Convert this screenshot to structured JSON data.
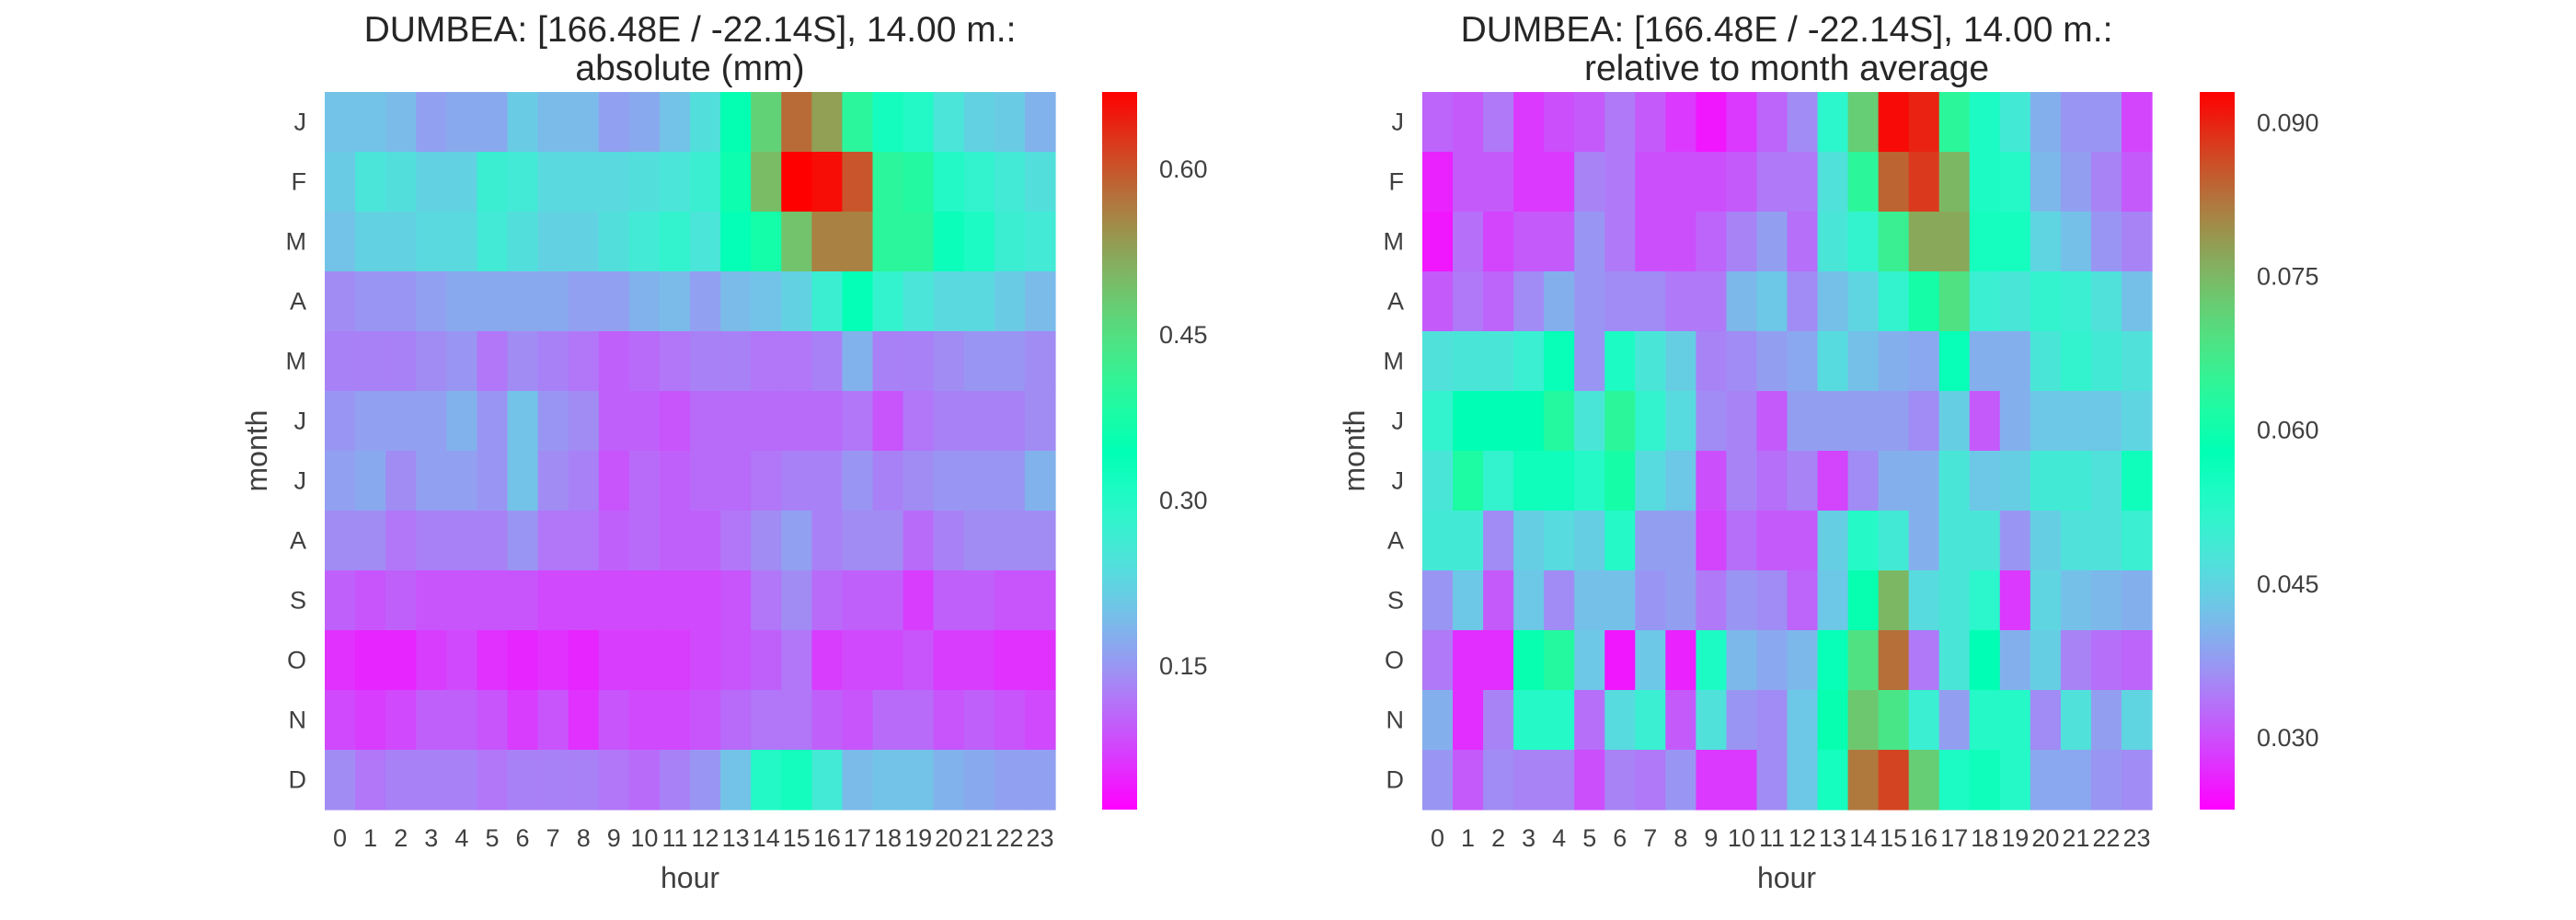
{
  "chart_data": [
    {
      "type": "heatmap",
      "title": "DUMBEA: [166.48E / -22.14S], 14.00 m.:",
      "subtitle": "absolute (mm)",
      "xlabel": "hour",
      "ylabel": "month",
      "x": [
        "0",
        "1",
        "2",
        "3",
        "4",
        "5",
        "6",
        "7",
        "8",
        "9",
        "10",
        "11",
        "12",
        "13",
        "14",
        "15",
        "16",
        "17",
        "18",
        "19",
        "20",
        "21",
        "22",
        "23"
      ],
      "y": [
        "J",
        "F",
        "M",
        "A",
        "M",
        "J",
        "J",
        "A",
        "S",
        "O",
        "N",
        "D"
      ],
      "colormap": "rainbow",
      "vmin": 0.02,
      "vmax": 0.67,
      "colorbar_ticks": [
        0.15,
        0.3,
        0.45,
        0.6
      ],
      "colorbar_tick_labels": [
        "0.15",
        "0.30",
        "0.45",
        "0.60"
      ],
      "values": [
        [
          0.2,
          0.2,
          0.19,
          0.16,
          0.17,
          0.17,
          0.21,
          0.19,
          0.19,
          0.16,
          0.17,
          0.2,
          0.24,
          0.35,
          0.47,
          0.58,
          0.53,
          0.4,
          0.32,
          0.3,
          0.25,
          0.22,
          0.21,
          0.18
        ],
        [
          0.21,
          0.25,
          0.24,
          0.22,
          0.22,
          0.27,
          0.26,
          0.23,
          0.23,
          0.23,
          0.24,
          0.25,
          0.27,
          0.36,
          0.5,
          0.67,
          0.66,
          0.6,
          0.4,
          0.39,
          0.3,
          0.28,
          0.26,
          0.24
        ],
        [
          0.2,
          0.22,
          0.22,
          0.23,
          0.23,
          0.26,
          0.24,
          0.22,
          0.22,
          0.24,
          0.26,
          0.28,
          0.25,
          0.34,
          0.37,
          0.49,
          0.56,
          0.56,
          0.4,
          0.4,
          0.33,
          0.31,
          0.27,
          0.26
        ],
        [
          0.14,
          0.15,
          0.15,
          0.16,
          0.17,
          0.17,
          0.17,
          0.17,
          0.16,
          0.16,
          0.18,
          0.19,
          0.16,
          0.19,
          0.2,
          0.22,
          0.27,
          0.34,
          0.28,
          0.25,
          0.23,
          0.23,
          0.21,
          0.19
        ],
        [
          0.13,
          0.13,
          0.13,
          0.14,
          0.15,
          0.12,
          0.14,
          0.13,
          0.12,
          0.1,
          0.11,
          0.12,
          0.13,
          0.13,
          0.12,
          0.12,
          0.13,
          0.18,
          0.13,
          0.13,
          0.14,
          0.15,
          0.15,
          0.14
        ],
        [
          0.15,
          0.16,
          0.16,
          0.16,
          0.18,
          0.15,
          0.2,
          0.15,
          0.14,
          0.1,
          0.1,
          0.09,
          0.11,
          0.11,
          0.11,
          0.11,
          0.11,
          0.12,
          0.09,
          0.12,
          0.13,
          0.13,
          0.13,
          0.14
        ],
        [
          0.16,
          0.17,
          0.14,
          0.16,
          0.16,
          0.15,
          0.2,
          0.14,
          0.13,
          0.09,
          0.11,
          0.1,
          0.11,
          0.11,
          0.12,
          0.13,
          0.13,
          0.15,
          0.13,
          0.14,
          0.15,
          0.15,
          0.15,
          0.18
        ],
        [
          0.14,
          0.14,
          0.12,
          0.13,
          0.13,
          0.13,
          0.15,
          0.12,
          0.12,
          0.1,
          0.11,
          0.1,
          0.1,
          0.12,
          0.14,
          0.16,
          0.13,
          0.14,
          0.14,
          0.11,
          0.13,
          0.14,
          0.14,
          0.14
        ],
        [
          0.1,
          0.09,
          0.1,
          0.09,
          0.09,
          0.09,
          0.09,
          0.08,
          0.08,
          0.08,
          0.08,
          0.08,
          0.08,
          0.09,
          0.12,
          0.14,
          0.11,
          0.1,
          0.1,
          0.07,
          0.1,
          0.1,
          0.09,
          0.09
        ],
        [
          0.06,
          0.05,
          0.05,
          0.07,
          0.08,
          0.06,
          0.05,
          0.06,
          0.05,
          0.07,
          0.07,
          0.07,
          0.08,
          0.09,
          0.1,
          0.12,
          0.07,
          0.08,
          0.08,
          0.09,
          0.07,
          0.07,
          0.06,
          0.06
        ],
        [
          0.08,
          0.07,
          0.08,
          0.1,
          0.1,
          0.09,
          0.07,
          0.09,
          0.06,
          0.09,
          0.08,
          0.08,
          0.09,
          0.11,
          0.12,
          0.12,
          0.1,
          0.09,
          0.11,
          0.11,
          0.09,
          0.1,
          0.09,
          0.08
        ],
        [
          0.14,
          0.12,
          0.13,
          0.13,
          0.13,
          0.12,
          0.13,
          0.13,
          0.13,
          0.12,
          0.11,
          0.13,
          0.15,
          0.2,
          0.3,
          0.32,
          0.26,
          0.19,
          0.2,
          0.2,
          0.18,
          0.17,
          0.16,
          0.16
        ]
      ]
    },
    {
      "type": "heatmap",
      "title": "DUMBEA: [166.48E / -22.14S], 14.00 m.:",
      "subtitle": "relative to month average",
      "xlabel": "hour",
      "ylabel": "month",
      "x": [
        "0",
        "1",
        "2",
        "3",
        "4",
        "5",
        "6",
        "7",
        "8",
        "9",
        "10",
        "11",
        "12",
        "13",
        "14",
        "15",
        "16",
        "17",
        "18",
        "19",
        "20",
        "21",
        "22",
        "23"
      ],
      "y": [
        "J",
        "F",
        "M",
        "A",
        "M",
        "J",
        "J",
        "A",
        "S",
        "O",
        "N",
        "D"
      ],
      "colormap": "rainbow",
      "vmin": 0.023,
      "vmax": 0.093,
      "colorbar_ticks": [
        0.03,
        0.045,
        0.06,
        0.075,
        0.09
      ],
      "colorbar_tick_labels": [
        "0.030",
        "0.045",
        "0.060",
        "0.075",
        "0.090"
      ],
      "values": [
        [
          0.032,
          0.031,
          0.034,
          0.028,
          0.03,
          0.031,
          0.034,
          0.031,
          0.028,
          0.025,
          0.028,
          0.032,
          0.036,
          0.052,
          0.072,
          0.092,
          0.09,
          0.064,
          0.054,
          0.049,
          0.04,
          0.037,
          0.037,
          0.029
        ],
        [
          0.026,
          0.031,
          0.031,
          0.028,
          0.028,
          0.035,
          0.034,
          0.03,
          0.03,
          0.03,
          0.031,
          0.034,
          0.034,
          0.047,
          0.064,
          0.084,
          0.088,
          0.075,
          0.054,
          0.053,
          0.041,
          0.038,
          0.035,
          0.031
        ],
        [
          0.025,
          0.033,
          0.029,
          0.031,
          0.031,
          0.037,
          0.034,
          0.03,
          0.03,
          0.032,
          0.035,
          0.038,
          0.033,
          0.048,
          0.051,
          0.066,
          0.077,
          0.077,
          0.055,
          0.055,
          0.045,
          0.042,
          0.037,
          0.035
        ],
        [
          0.031,
          0.034,
          0.032,
          0.036,
          0.04,
          0.037,
          0.036,
          0.036,
          0.034,
          0.034,
          0.041,
          0.043,
          0.036,
          0.042,
          0.045,
          0.051,
          0.061,
          0.069,
          0.05,
          0.048,
          0.051,
          0.05,
          0.047,
          0.042
        ],
        [
          0.047,
          0.048,
          0.048,
          0.05,
          0.057,
          0.037,
          0.054,
          0.048,
          0.044,
          0.035,
          0.036,
          0.038,
          0.039,
          0.046,
          0.042,
          0.04,
          0.039,
          0.057,
          0.04,
          0.04,
          0.048,
          0.051,
          0.049,
          0.047
        ],
        [
          0.051,
          0.058,
          0.058,
          0.058,
          0.063,
          0.048,
          0.064,
          0.051,
          0.046,
          0.036,
          0.035,
          0.031,
          0.038,
          0.038,
          0.038,
          0.038,
          0.036,
          0.044,
          0.031,
          0.04,
          0.043,
          0.043,
          0.043,
          0.045
        ],
        [
          0.048,
          0.062,
          0.051,
          0.056,
          0.056,
          0.053,
          0.061,
          0.046,
          0.043,
          0.03,
          0.035,
          0.033,
          0.035,
          0.029,
          0.036,
          0.04,
          0.04,
          0.048,
          0.043,
          0.044,
          0.049,
          0.049,
          0.047,
          0.056
        ],
        [
          0.049,
          0.049,
          0.036,
          0.044,
          0.046,
          0.044,
          0.053,
          0.038,
          0.038,
          0.029,
          0.033,
          0.031,
          0.031,
          0.044,
          0.053,
          0.049,
          0.04,
          0.048,
          0.048,
          0.037,
          0.044,
          0.047,
          0.047,
          0.05
        ],
        [
          0.037,
          0.043,
          0.031,
          0.043,
          0.036,
          0.042,
          0.042,
          0.037,
          0.038,
          0.034,
          0.037,
          0.036,
          0.032,
          0.043,
          0.059,
          0.075,
          0.046,
          0.048,
          0.052,
          0.028,
          0.045,
          0.042,
          0.041,
          0.04
        ],
        [
          0.034,
          0.027,
          0.027,
          0.059,
          0.063,
          0.043,
          0.025,
          0.043,
          0.026,
          0.054,
          0.041,
          0.039,
          0.041,
          0.057,
          0.069,
          0.083,
          0.034,
          0.048,
          0.058,
          0.04,
          0.044,
          0.035,
          0.033,
          0.032
        ],
        [
          0.04,
          0.027,
          0.035,
          0.053,
          0.053,
          0.033,
          0.046,
          0.05,
          0.031,
          0.047,
          0.037,
          0.036,
          0.043,
          0.059,
          0.073,
          0.068,
          0.05,
          0.038,
          0.053,
          0.053,
          0.036,
          0.047,
          0.038,
          0.045
        ],
        [
          0.037,
          0.031,
          0.036,
          0.035,
          0.035,
          0.03,
          0.035,
          0.034,
          0.037,
          0.028,
          0.028,
          0.036,
          0.043,
          0.055,
          0.082,
          0.087,
          0.072,
          0.054,
          0.056,
          0.053,
          0.039,
          0.039,
          0.037,
          0.036
        ]
      ]
    }
  ]
}
